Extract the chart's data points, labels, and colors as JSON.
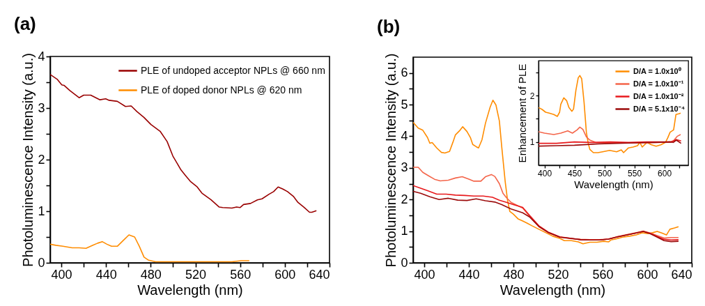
{
  "chart_data": [
    {
      "type": "line",
      "title": "(a)",
      "xlabel": "Wavelength (nm)",
      "ylabel": "Photoluminescence Intensity (a.u.)",
      "xlim": [
        390,
        640
      ],
      "ylim": [
        0,
        4
      ],
      "xticks": [
        400,
        {
          "value": 420,
          "label": null
        },
        440,
        {
          "value": 460,
          "label": null
        },
        480,
        {
          "value": 500,
          "label": null
        },
        520,
        {
          "value": 540,
          "label": null
        },
        560,
        {
          "value": 580,
          "label": null
        },
        600,
        {
          "value": 620,
          "label": null
        },
        640
      ],
      "yticks": [
        0,
        {
          "value": 0.5,
          "label": null
        },
        1,
        {
          "value": 1.5,
          "label": null
        },
        2,
        {
          "value": 2.5,
          "label": null
        },
        3,
        {
          "value": 3.5,
          "label": null
        },
        4
      ],
      "legend": "top right",
      "series": [
        {
          "name": "PLE of undoped acceptor NPLs @ 660 nm",
          "color": "#990000",
          "x": [
            390,
            396.2,
            400.4,
            402.4,
            407.6,
            415.9,
            420,
            426.3,
            434.6,
            439.7,
            442.8,
            450.1,
            457.4,
            462.5,
            467.7,
            473.9,
            480.2,
            488.4,
            494.7,
            499.8,
            507.1,
            511.2,
            515.4,
            521.6,
            525.8,
            534,
            541.3,
            544.4,
            552.7,
            556.8,
            559.9,
            563.1,
            569.3,
            575.5,
            579.6,
            585.9,
            590,
            594,
            598.3,
            602.4,
            607.6,
            611.8,
            617,
            622.1,
            624.2,
            628.3
          ],
          "values": [
            3.65,
            3.56,
            3.45,
            3.44,
            3.34,
            3.2,
            3.25,
            3.25,
            3.16,
            3.18,
            3.15,
            3.13,
            3.03,
            3.04,
            2.93,
            2.82,
            2.68,
            2.55,
            2.35,
            2.07,
            1.8,
            1.69,
            1.58,
            1.47,
            1.35,
            1.22,
            1.08,
            1.07,
            1.06,
            1.08,
            1.07,
            1.13,
            1.15,
            1.22,
            1.24,
            1.33,
            1.38,
            1.47,
            1.43,
            1.38,
            1.29,
            1.17,
            1.08,
            0.98,
            0.98,
            1.01
          ]
        },
        {
          "name": "PLE of doped donor NPLs @ 620 nm",
          "color": "#ff8c00",
          "x": [
            390,
            395,
            401.4,
            409.7,
            415.9,
            422.1,
            428.3,
            432.5,
            436.6,
            440.8,
            444.9,
            450.1,
            455.3,
            460.5,
            465.6,
            469.8,
            474,
            478.1,
            484.3,
            511.2,
            552.7,
            561,
            568.2
          ],
          "values": [
            0.36,
            0.34,
            0.32,
            0.29,
            0.29,
            0.28,
            0.34,
            0.38,
            0.41,
            0.36,
            0.32,
            0.32,
            0.43,
            0.54,
            0.5,
            0.32,
            0.11,
            0.05,
            0.02,
            0.02,
            0.02,
            0.04,
            0.04
          ]
        }
      ]
    },
    {
      "type": "line",
      "title": "(b)",
      "xlabel": "Wavelength (nm)",
      "ylabel": "Photoluminescence Intensity (a.u.)",
      "xlim": [
        390,
        640
      ],
      "ylim": [
        0,
        6.5
      ],
      "xticks": [
        400,
        {
          "value": 420,
          "label": null
        },
        440,
        {
          "value": 460,
          "label": null
        },
        480,
        {
          "value": 500,
          "label": null
        },
        520,
        {
          "value": 540,
          "label": null
        },
        560,
        {
          "value": 580,
          "label": null
        },
        600,
        {
          "value": 620,
          "label": null
        },
        640
      ],
      "yticks": [
        0,
        {
          "value": 0.5,
          "label": null
        },
        1,
        {
          "value": 1.5,
          "label": null
        },
        2,
        {
          "value": 2.5,
          "label": null
        },
        3,
        {
          "value": 3.5,
          "label": null
        },
        4,
        {
          "value": 4.5,
          "label": null
        },
        5,
        {
          "value": 5.5,
          "label": null
        },
        6
      ],
      "series": [
        {
          "color": "#ff8c00",
          "x": [
            390,
            394.6,
            398.7,
            402.9,
            405,
            407.1,
            411.2,
            415.4,
            418.5,
            422.7,
            425.8,
            427.9,
            432.1,
            434.5,
            438.3,
            441.4,
            443.5,
            446.6,
            448.7,
            451.8,
            454.9,
            459.1,
            461.6,
            464.3,
            467.4,
            469.5,
            472.6,
            474.7,
            476.8,
            479.9,
            484.1,
            488.3,
            492.4,
            496.6,
            502.8,
            509.1,
            515.3,
            521.6,
            525.7,
            532,
            538.2,
            542.4,
            548.6,
            554.9,
            561.1,
            565.3,
            567.4,
            571.5,
            577.8,
            584,
            590.2,
            595.5,
            600.7,
            604.8,
            609,
            613.1,
            617.3,
            620.4,
            624.6,
            628.1
          ],
          "values": [
            4.44,
            4.26,
            4.19,
            3.96,
            3.78,
            3.8,
            3.63,
            3.49,
            3.47,
            3.52,
            3.82,
            4.04,
            4.19,
            4.3,
            4.15,
            3.96,
            3.74,
            3.67,
            3.63,
            3.89,
            4.41,
            4.92,
            5.14,
            4.99,
            4.48,
            3.67,
            2.57,
            1.98,
            1.62,
            1.54,
            1.39,
            1.32,
            1.25,
            1.17,
            1.06,
            0.95,
            0.84,
            0.77,
            0.7,
            0.7,
            0.66,
            0.6,
            0.65,
            0.65,
            0.68,
            0.66,
            0.72,
            0.75,
            0.81,
            0.84,
            0.88,
            0.95,
            0.92,
            0.95,
            0.99,
            0.94,
            0.88,
            1.06,
            1.1,
            1.14
          ]
        },
        {
          "color": "#f4654a",
          "x": [
            390,
            394.6,
            398.7,
            403.9,
            409.2,
            414.4,
            421.6,
            427.9,
            434.1,
            440.4,
            444.5,
            450.8,
            454.9,
            460.2,
            463.3,
            467.4,
            470.6,
            473.7,
            477.8,
            484.1,
            488.3,
            494.5,
            502.8,
            511.2,
            521.6,
            532,
            540.3,
            548.6,
            557,
            565.3,
            573.6,
            581.9,
            590.2,
            596.5,
            602.7,
            609,
            615.2,
            621.5,
            628.1
          ],
          "values": [
            3.02,
            3.02,
            2.86,
            2.75,
            2.64,
            2.59,
            2.61,
            2.68,
            2.72,
            2.64,
            2.58,
            2.58,
            2.72,
            2.79,
            2.73,
            2.5,
            2.2,
            2.06,
            1.91,
            1.8,
            1.73,
            1.47,
            1.14,
            0.95,
            0.81,
            0.76,
            0.74,
            0.73,
            0.73,
            0.75,
            0.83,
            0.89,
            0.95,
            1,
            0.94,
            0.86,
            0.78,
            0.8,
            0.8
          ]
        },
        {
          "color": "#e8191c",
          "x": [
            390,
            396.7,
            402.9,
            411.2,
            419.6,
            427.9,
            436.2,
            444.5,
            452.9,
            461.2,
            467.4,
            473.7,
            479.9,
            488.3,
            494.5,
            502.8,
            511.2,
            521.6,
            532,
            540.3,
            548.6,
            557,
            565.3,
            573.6,
            581.9,
            590.2,
            596.5,
            602.7,
            609,
            615.2,
            621.5,
            628.1
          ],
          "values": [
            2.44,
            2.36,
            2.28,
            2.17,
            2.17,
            2.14,
            2.13,
            2.11,
            2.11,
            2.07,
            1.98,
            1.91,
            1.84,
            1.75,
            1.5,
            1.17,
            0.97,
            0.82,
            0.77,
            0.73,
            0.72,
            0.72,
            0.75,
            0.82,
            0.88,
            0.94,
            0.99,
            0.93,
            0.83,
            0.74,
            0.72,
            0.73
          ]
        },
        {
          "color": "#9b0a0a",
          "x": [
            390,
            396.7,
            405,
            413.3,
            421.6,
            430,
            438.3,
            446.6,
            454.9,
            463.3,
            469.5,
            477.8,
            488.3,
            494.5,
            502.8,
            511.2,
            521.6,
            532,
            540.3,
            548.6,
            557,
            565.3,
            573.6,
            581.9,
            590.2,
            596.5,
            602.7,
            609,
            615.2,
            621.5,
            628.1
          ],
          "values": [
            2.26,
            2.2,
            2.09,
            2,
            2.04,
            1.98,
            1.97,
            2.02,
            1.96,
            1.92,
            1.84,
            1.7,
            1.58,
            1.45,
            1.15,
            0.96,
            0.81,
            0.77,
            0.73,
            0.72,
            0.72,
            0.75,
            0.82,
            0.88,
            0.94,
            0.99,
            0.92,
            0.81,
            0.7,
            0.67,
            0.68
          ]
        }
      ]
    },
    {
      "type": "line",
      "xlabel": "Wavelength (nm)",
      "ylabel": "Enhancement of PLE",
      "xlim": [
        390,
        640
      ],
      "ylim": [
        0.5,
        2.75
      ],
      "xticks": [
        400,
        {
          "value": 425,
          "label": null
        },
        450,
        {
          "value": 475,
          "label": null
        },
        500,
        {
          "value": 525,
          "label": null
        },
        550,
        {
          "value": 575,
          "label": null
        },
        600,
        {
          "value": 625,
          "label": null
        }
      ],
      "yticks": [
        {
          "value": 1.5,
          "label": null
        },
        1,
        2,
        {
          "value": 2.5,
          "label": null
        }
      ],
      "legend": "top right",
      "series": [
        {
          "name": "D/A = 1.0x10⁰",
          "color": "#ff8c00",
          "x": [
            390.3,
            396,
            401.9,
            407.8,
            415.5,
            421.4,
            425.2,
            427.2,
            432.2,
            436.9,
            440.8,
            445.8,
            448.5,
            452.4,
            456.3,
            459,
            462.1,
            466,
            469.9,
            473,
            475.7,
            481.6,
            489.3,
            497.1,
            508.7,
            520.4,
            528.2,
            532,
            539.8,
            547.6,
            555.3,
            559.2,
            563.1,
            570.9,
            578.6,
            586.4,
            594.2,
            601.9,
            605.8,
            609.7,
            615.5,
            619.4,
            625.2,
            627.2
          ],
          "values": [
            1.74,
            1.7,
            1.64,
            1.62,
            1.59,
            1.55,
            1.64,
            1.81,
            1.95,
            1.89,
            1.74,
            1.66,
            1.71,
            2.11,
            2.38,
            2.43,
            2.36,
            1.86,
            1.21,
            0.97,
            0.84,
            0.77,
            0.77,
            0.79,
            0.82,
            0.79,
            0.83,
            0.77,
            0.87,
            0.89,
            0.92,
            0.99,
            0.89,
            0.99,
            0.94,
            0.91,
            0.94,
            0.99,
            1.09,
            1.21,
            1.26,
            1.59,
            1.61,
            1.62
          ]
        },
        {
          "name": "D/A = 1.0x10⁻¹",
          "color": "#f4654a",
          "x": [
            390,
            400,
            415.5,
            427.2,
            438.8,
            446.6,
            454.4,
            459,
            464.1,
            469.9,
            475.7,
            485.4,
            512.6,
            551.5,
            589.6,
            609.7,
            615.5,
            621.4,
            627.2
          ],
          "values": [
            1.22,
            1.19,
            1.16,
            1.19,
            1.24,
            1.19,
            1.26,
            1.32,
            1.27,
            1.11,
            1.04,
            0.99,
            0.98,
            0.98,
            0.99,
            1,
            1.03,
            1.12,
            1.16
          ]
        },
        {
          "name": "D/A = 1.0x10⁻²",
          "color": "#e8191c",
          "x": [
            390,
            420,
            450,
            480,
            510,
            540,
            570,
            600,
            612,
            620,
            628
          ],
          "values": [
            0.97,
            0.97,
            1,
            0.99,
            1,
            0.99,
            1,
            1,
            1,
            1.05,
            1.02
          ]
        },
        {
          "name": "D/A = 5.1x10⁻⁴",
          "color": "#9b0a0a",
          "x": [
            390,
            420,
            450,
            490,
            520,
            550,
            580,
            610,
            615,
            620,
            628
          ],
          "values": [
            0.91,
            0.92,
            0.93,
            0.96,
            0.97,
            0.98,
            0.99,
            1,
            0.99,
            1.04,
            0.97
          ]
        }
      ]
    }
  ]
}
